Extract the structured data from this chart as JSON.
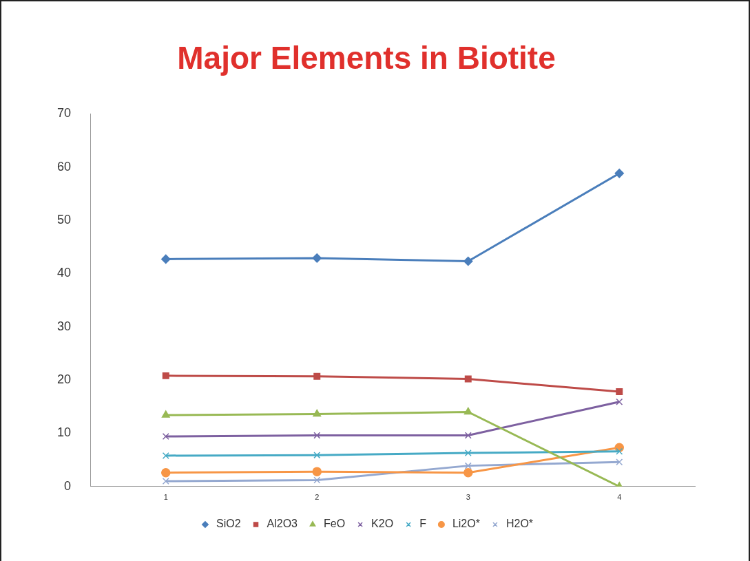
{
  "chart_data": {
    "type": "line",
    "title": "Major Elements in Biotite",
    "categories": [
      "1",
      "2",
      "3",
      "4"
    ],
    "series": [
      {
        "name": "SiO2",
        "color": "#4a7ebb",
        "marker": "diamond",
        "values": [
          42.7,
          42.9,
          42.3,
          58.8
        ]
      },
      {
        "name": "Al2O3",
        "color": "#be4b48",
        "marker": "square",
        "values": [
          20.8,
          20.7,
          20.2,
          17.8
        ]
      },
      {
        "name": "FeO",
        "color": "#98b954",
        "marker": "triangle",
        "values": [
          13.4,
          13.6,
          14.0,
          0
        ]
      },
      {
        "name": "K2O",
        "color": "#7d60a0",
        "marker": "cross",
        "values": [
          9.4,
          9.6,
          9.6,
          15.9
        ]
      },
      {
        "name": "F",
        "color": "#46aac5",
        "marker": "cross",
        "values": [
          5.8,
          5.9,
          6.3,
          6.6
        ]
      },
      {
        "name": "Li2O*",
        "color": "#f79646",
        "marker": "circle",
        "values": [
          2.6,
          2.8,
          2.6,
          7.3
        ]
      },
      {
        "name": "H2O*",
        "color": "#94a8d0",
        "marker": "cross",
        "values": [
          1.0,
          1.2,
          3.9,
          4.6
        ]
      }
    ],
    "ylim": [
      0,
      70
    ],
    "yticks": [
      0,
      10,
      20,
      30,
      40,
      50,
      60,
      70
    ],
    "grid": false,
    "legend": "bottom",
    "line_style": "solid"
  }
}
